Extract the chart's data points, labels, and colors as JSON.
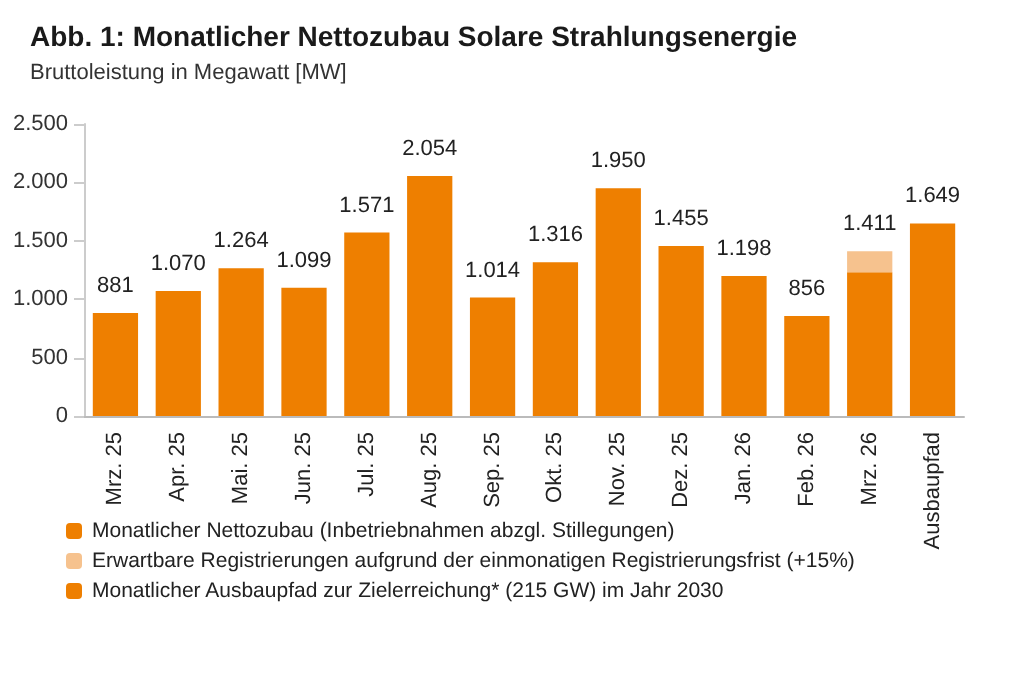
{
  "chart_data": {
    "type": "bar",
    "title": "Abb. 1: Monatlicher Nettozubau Solare Strahlungsenergie",
    "subtitle": "Bruttoleistung in Megawatt [MW]",
    "categories": [
      "Mrz. 25",
      "Apr. 25",
      "Mai. 25",
      "Jun. 25",
      "Jul. 25",
      "Aug. 25",
      "Sep. 25",
      "Okt. 25",
      "Nov. 25",
      "Dez. 25",
      "Jan. 26",
      "Feb. 26",
      "Mrz. 26",
      "Ausbaupfad"
    ],
    "stacked": true,
    "series": [
      {
        "name": "Monatlicher Nettozubau (Inbetriebnahmen abzgl. Stillegungen)",
        "color": "#ee7f00",
        "values": [
          881,
          1070,
          1264,
          1099,
          1571,
          2054,
          1014,
          1316,
          1950,
          1455,
          1198,
          856,
          1230,
          null
        ],
        "value_labels": [
          "881",
          "1.070",
          "1.264",
          "1.099",
          "1.571",
          "2.054",
          "1.014",
          "1.316",
          "1.950",
          "1.455",
          "1.198",
          "856",
          null,
          null
        ]
      },
      {
        "name": "Erwartbare Registrierungen aufgrund der einmonatigen Registrierungsfrist (+15%)",
        "color": "#f6c28e",
        "values": [
          null,
          null,
          null,
          null,
          null,
          null,
          null,
          null,
          null,
          null,
          null,
          null,
          180,
          null
        ]
      },
      {
        "name": "Monatlicher Ausbaupfad zur Zielerreichung* (215 GW) im Jahr 2030",
        "color": "#ee7f00",
        "values": [
          null,
          null,
          null,
          null,
          null,
          null,
          null,
          null,
          null,
          null,
          null,
          null,
          null,
          1649
        ],
        "value_labels": [
          null,
          null,
          null,
          null,
          null,
          null,
          null,
          null,
          null,
          null,
          null,
          null,
          null,
          "1.649"
        ]
      }
    ],
    "totals": [
      null,
      null,
      null,
      null,
      null,
      null,
      null,
      null,
      null,
      null,
      null,
      null,
      "1.411",
      null
    ],
    "ylim": [
      0,
      2500
    ],
    "yticks": [
      0,
      500,
      {
        "value": 1000,
        "label": "1.000"
      },
      {
        "value": 1500,
        "label": "1.500"
      },
      {
        "value": 2000,
        "label": "2.000"
      },
      {
        "value": 2500,
        "label": "2.500"
      }
    ],
    "grid": false,
    "legend": "bottom left"
  }
}
